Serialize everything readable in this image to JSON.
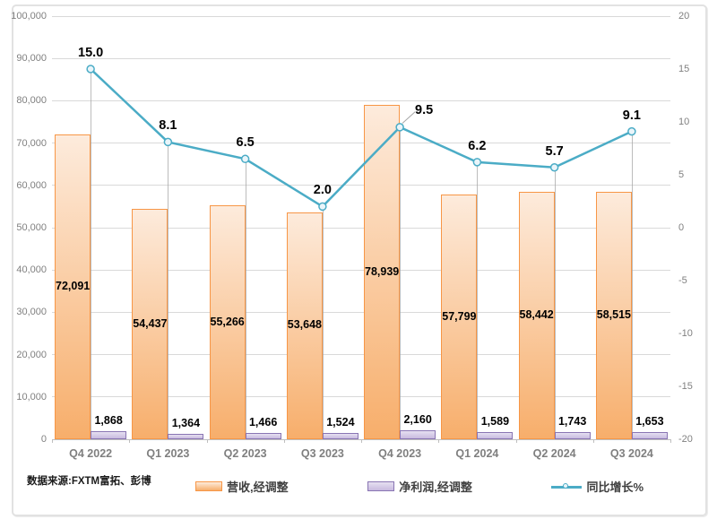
{
  "chart_data": {
    "type": "combo",
    "title": "",
    "categories": [
      "Q4 2022",
      "Q1 2023",
      "Q2 2023",
      "Q3 2023",
      "Q4 2023",
      "Q1 2024",
      "Q2 2024",
      "Q3 2024"
    ],
    "series": [
      {
        "name": "营收,经调整",
        "type": "bar",
        "axis": "left",
        "values": [
          72091,
          54437,
          55266,
          53648,
          78939,
          57799,
          58442,
          58515
        ],
        "labels": [
          "72,091",
          "54,437",
          "55,266",
          "53,648",
          "78,939",
          "57,799",
          "58,442",
          "58,515"
        ],
        "fill_top": "#FDEBDC",
        "fill_bottom": "#F7AE6B",
        "border_color": "#F79646"
      },
      {
        "name": "净利润,经调整",
        "type": "bar",
        "axis": "left",
        "values": [
          1868,
          1364,
          1466,
          1524,
          2160,
          1589,
          1743,
          1653
        ],
        "labels": [
          "1,868",
          "1,364",
          "1,466",
          "1,524",
          "2,160",
          "1,589",
          "1,743",
          "1,653"
        ],
        "fill_top": "#E6E0F1",
        "fill_bottom": "#C8BADF",
        "border_color": "#8975B3"
      },
      {
        "name": "同比增长%",
        "type": "line",
        "axis": "right",
        "values": [
          15.0,
          8.1,
          6.5,
          2.0,
          9.5,
          6.2,
          5.7,
          9.1
        ],
        "labels": [
          "15.0",
          "8.1",
          "6.5",
          "2.0",
          "9.5",
          "6.2",
          "5.7",
          "9.1"
        ],
        "color": "#4BACC6",
        "marker_fill": "#EAF5FA",
        "callout_index": 4
      }
    ],
    "left_axis": {
      "min": 0,
      "max": 100000,
      "tick_labels": [
        "100,000",
        "90,000",
        "80,000",
        "70,000",
        "60,000",
        "50,000",
        "40,000",
        "30,000",
        "20,000",
        "10,000",
        "0"
      ]
    },
    "right_axis": {
      "min": -20,
      "max": 20,
      "tick_labels": [
        "20",
        "15",
        "10",
        "5",
        "0",
        "-5",
        "-10",
        "-15",
        "-20"
      ]
    },
    "grid": true,
    "legend_position": "bottom"
  },
  "source_note": "数据来源:FXTM富拓、彭博",
  "colors": {
    "grid": "#D9D9D9",
    "axis_line": "#BFBFBF",
    "drop_line": "#A6A6A6",
    "axis_text": "#808080",
    "frame_border": "#E2E2E2"
  }
}
